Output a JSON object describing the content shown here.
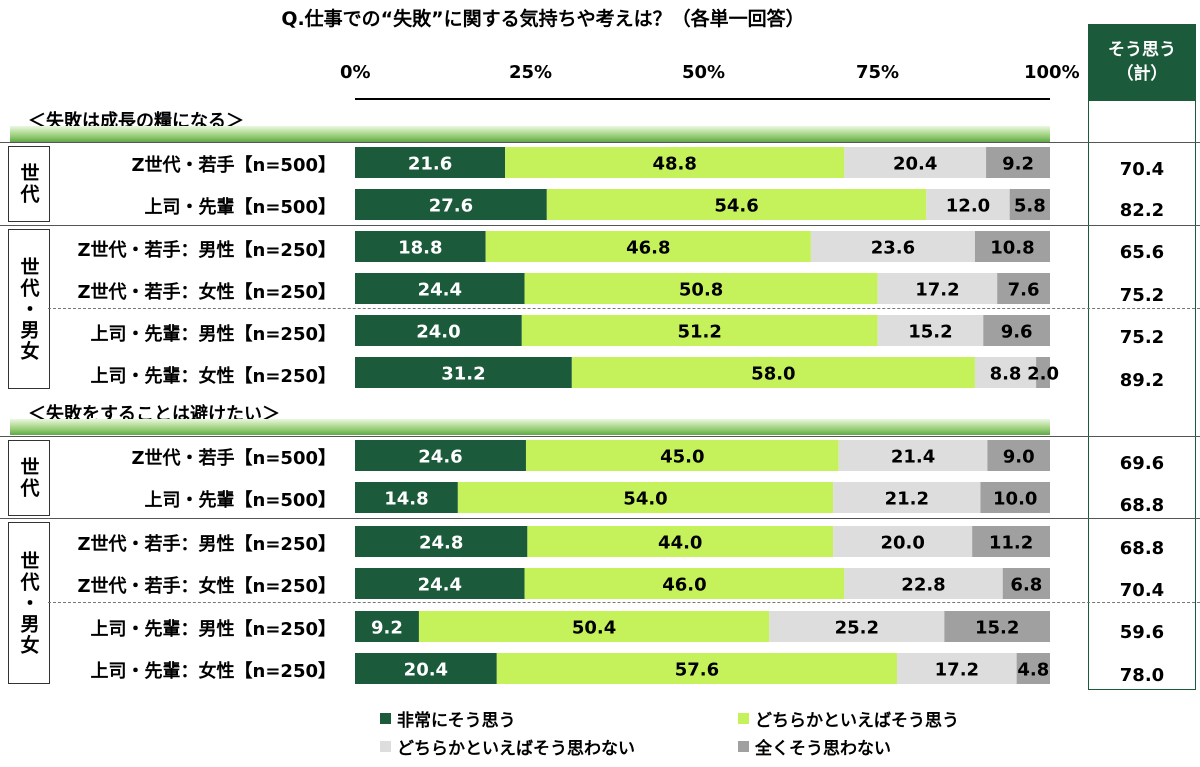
{
  "chart_data": {
    "type": "bar",
    "orientation": "horizontal",
    "stacked": true,
    "title": "Q.仕事での“失敗”に関する気持ちや考えは？（各単一回答）",
    "xlim": [
      0,
      100
    ],
    "ticks": [
      "0%",
      "25%",
      "50%",
      "75%",
      "100%"
    ],
    "series": [
      {
        "name": "非常にそう思う",
        "color": "#1c5a3c"
      },
      {
        "name": "どちらかといえばそう思う",
        "color": "#c5f25a"
      },
      {
        "name": "どちらかといえばそう思わない",
        "color": "#dddddd"
      },
      {
        "name": "全くそう思わない",
        "color": "#a0a0a0"
      }
    ],
    "total_header": [
      "そう思う",
      "（計）"
    ],
    "sections": [
      {
        "label": "＜失敗は成長の糧になる＞",
        "groups": [
          {
            "label": "世代",
            "rows": [
              {
                "label": "Z世代・若手【n=500】",
                "values": [
                  21.6,
                  48.8,
                  20.4,
                  9.2
                ],
                "display": [
                  "21.6",
                  "48.8",
                  "20.4",
                  "9.2"
                ],
                "total": "70.4"
              },
              {
                "label": "上司・先輩【n=500】",
                "values": [
                  27.6,
                  54.6,
                  12.0,
                  5.8
                ],
                "display": [
                  "27.6",
                  "54.6",
                  "12.0",
                  "5.8"
                ],
                "total": "82.2"
              }
            ]
          },
          {
            "label": "世代・男女",
            "rows": [
              {
                "label": "Z世代・若手：男性【n=250】",
                "values": [
                  18.8,
                  46.8,
                  23.6,
                  10.8
                ],
                "display": [
                  "18.8",
                  "46.8",
                  "23.6",
                  "10.8"
                ],
                "total": "65.6"
              },
              {
                "label": "Z世代・若手：女性【n=250】",
                "values": [
                  24.4,
                  50.8,
                  17.2,
                  7.6
                ],
                "display": [
                  "24.4",
                  "50.8",
                  "17.2",
                  "7.6"
                ],
                "total": "75.2"
              },
              {
                "label": "上司・先輩：男性【n=250】",
                "values": [
                  24.0,
                  51.2,
                  15.2,
                  9.6
                ],
                "display": [
                  "24.0",
                  "51.2",
                  "15.2",
                  "9.6"
                ],
                "total": "75.2"
              },
              {
                "label": "上司・先輩：女性【n=250】",
                "values": [
                  31.2,
                  58.0,
                  8.8,
                  2.0
                ],
                "display": [
                  "31.2",
                  "58.0",
                  "8.8",
                  "2.0"
                ],
                "total": "89.2"
              }
            ]
          }
        ]
      },
      {
        "label": "＜失敗をすることは避けたい＞",
        "groups": [
          {
            "label": "世代",
            "rows": [
              {
                "label": "Z世代・若手【n=500】",
                "values": [
                  24.6,
                  45.0,
                  21.4,
                  9.0
                ],
                "display": [
                  "24.6",
                  "45.0",
                  "21.4",
                  "9.0"
                ],
                "total": "69.6"
              },
              {
                "label": "上司・先輩【n=500】",
                "values": [
                  14.8,
                  54.0,
                  21.2,
                  10.0
                ],
                "display": [
                  "14.8",
                  "54.0",
                  "21.2",
                  "10.0"
                ],
                "total": "68.8"
              }
            ]
          },
          {
            "label": "世代・男女",
            "rows": [
              {
                "label": "Z世代・若手：男性【n=250】",
                "values": [
                  24.8,
                  44.0,
                  20.0,
                  11.2
                ],
                "display": [
                  "24.8",
                  "44.0",
                  "20.0",
                  "11.2"
                ],
                "total": "68.8"
              },
              {
                "label": "Z世代・若手：女性【n=250】",
                "values": [
                  24.4,
                  46.0,
                  22.8,
                  6.8
                ],
                "display": [
                  "24.4",
                  "46.0",
                  "22.8",
                  "6.8"
                ],
                "total": "70.4"
              },
              {
                "label": "上司・先輩：男性【n=250】",
                "values": [
                  9.2,
                  50.4,
                  25.2,
                  15.2
                ],
                "display": [
                  "9.2",
                  "50.4",
                  "25.2",
                  "15.2"
                ],
                "total": "59.6"
              },
              {
                "label": "上司・先輩：女性【n=250】",
                "values": [
                  20.4,
                  57.6,
                  17.2,
                  4.8
                ],
                "display": [
                  "20.4",
                  "57.6",
                  "17.2",
                  "4.8"
                ],
                "total": "78.0"
              }
            ]
          }
        ]
      }
    ]
  }
}
